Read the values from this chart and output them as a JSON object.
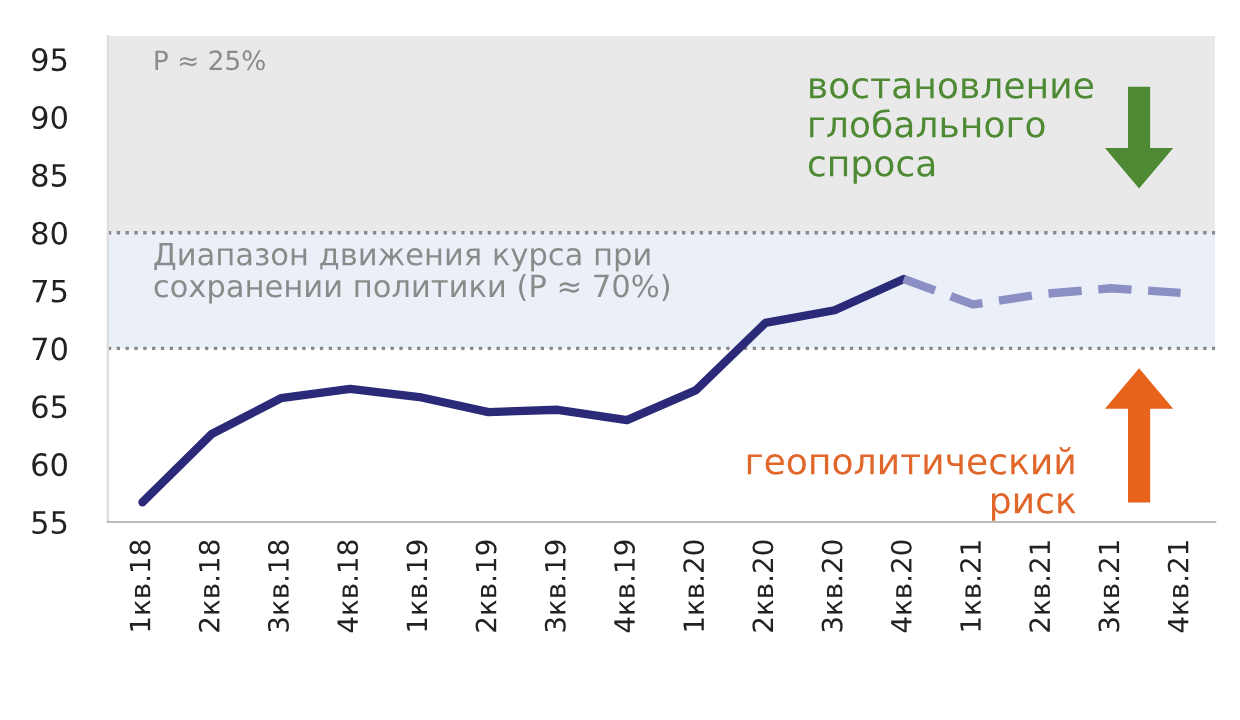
{
  "chart_data": {
    "type": "line",
    "categories": [
      "1кв.18",
      "2кв.18",
      "3кв.18",
      "4кв.18",
      "1кв.19",
      "2кв.19",
      "3кв.19",
      "4кв.19",
      "1кв.20",
      "2кв.20",
      "3кв.20",
      "4кв.20",
      "1кв.21",
      "2кв.21",
      "3кв.21",
      "4кв.21"
    ],
    "series": [
      {
        "color": "#2b2a78",
        "line_style": "solid",
        "values": [
          56.7,
          62.6,
          65.7,
          66.5,
          65.8,
          64.5,
          64.7,
          63.8,
          66.4,
          72.2,
          73.3,
          76.0,
          null,
          null,
          null,
          null
        ]
      },
      {
        "color": "#8b8fc4",
        "line_style": "dashed",
        "values": [
          null,
          null,
          null,
          null,
          null,
          null,
          null,
          null,
          null,
          null,
          null,
          76.0,
          73.8,
          74.7,
          75.2,
          74.8
        ]
      }
    ],
    "ylim": [
      55,
      97
    ],
    "yticks": [
      55,
      60,
      65,
      70,
      75,
      80,
      85,
      90,
      95
    ],
    "bands": [
      {
        "axis": "y",
        "from": 80,
        "to": 97,
        "label": "P ≈ 25%",
        "color": "#e9e9e9"
      },
      {
        "axis": "y",
        "from": 70,
        "to": 80,
        "label": "Диапазон движения курса при\nсохранении политики (P ≈ 70%)",
        "color": "#ebf0f8"
      }
    ],
    "ref_lines": [
      {
        "axis": "y",
        "value": 70,
        "color": "#888888",
        "line_style": "dotted"
      },
      {
        "axis": "y",
        "value": 80,
        "color": "#888888",
        "line_style": "dotted"
      }
    ],
    "annotations": [
      "востановление\nглобального\nспроса",
      "геополитический\nриск"
    ],
    "grid": false,
    "legend": false,
    "marker": "none"
  }
}
